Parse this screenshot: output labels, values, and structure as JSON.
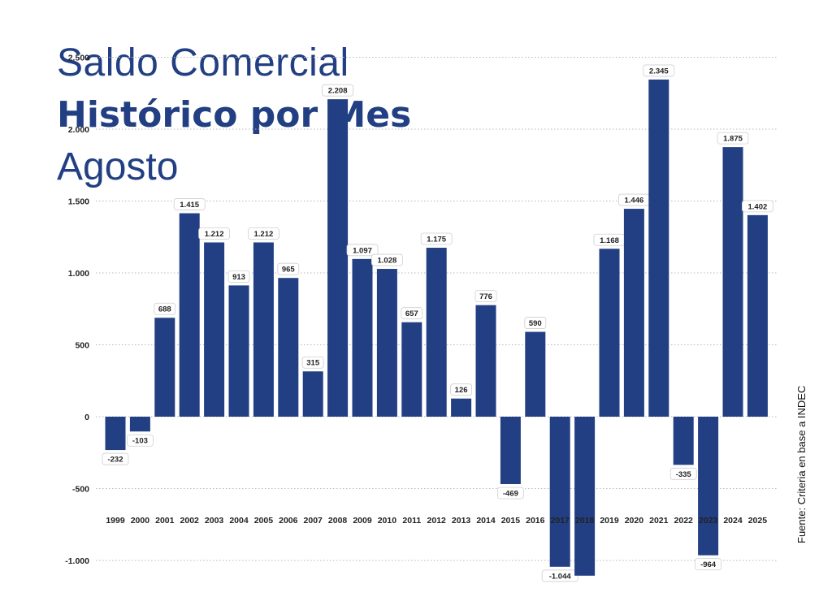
{
  "title": {
    "line1": "Saldo Comercial",
    "line2": "Histórico por Mes",
    "line3": "Agosto"
  },
  "source": "Fuente: Criteria en base a INDEC",
  "colors": {
    "bar": "#213f82",
    "title": "#213f82",
    "grid": "#b8b8b8"
  },
  "chart_data": {
    "type": "bar",
    "title": "Saldo Comercial Histórico por Mes Agosto",
    "categories": [
      "1999",
      "2000",
      "2001",
      "2002",
      "2003",
      "2004",
      "2005",
      "2006",
      "2007",
      "2008",
      "2009",
      "2010",
      "2011",
      "2012",
      "2013",
      "2014",
      "2015",
      "2016",
      "2017",
      "2018",
      "2019",
      "2020",
      "2021",
      "2022",
      "2023",
      "2024",
      "2025"
    ],
    "values": [
      -232,
      -103,
      688,
      1415,
      1212,
      913,
      1212,
      965,
      315,
      2208,
      1097,
      1028,
      657,
      1175,
      126,
      776,
      -469,
      590,
      -1044,
      -1106,
      1168,
      1446,
      2345,
      -335,
      -964,
      1875,
      1402
    ],
    "data_labels": [
      "-232",
      "-103",
      "688",
      "1.415",
      "1.212",
      "913",
      "1.212",
      "965",
      "315",
      "2.208",
      "1.097",
      "1.028",
      "657",
      "1.175",
      "126",
      "776",
      "-469",
      "590",
      "-1.044",
      "",
      "1.168",
      "1.446",
      "2.345",
      "-335",
      "-964",
      "1.875",
      "1.402"
    ],
    "yticks": [
      2500,
      2000,
      1500,
      1000,
      500,
      0,
      -500,
      -1000
    ],
    "ytick_labels": [
      "2.500",
      "2.000",
      "1.500",
      "1.000",
      "500",
      "0",
      "-500",
      "-1.000"
    ],
    "ylim": [
      -1000,
      2500
    ],
    "xlabel": "",
    "ylabel": "",
    "grid": true,
    "legend": "none"
  }
}
